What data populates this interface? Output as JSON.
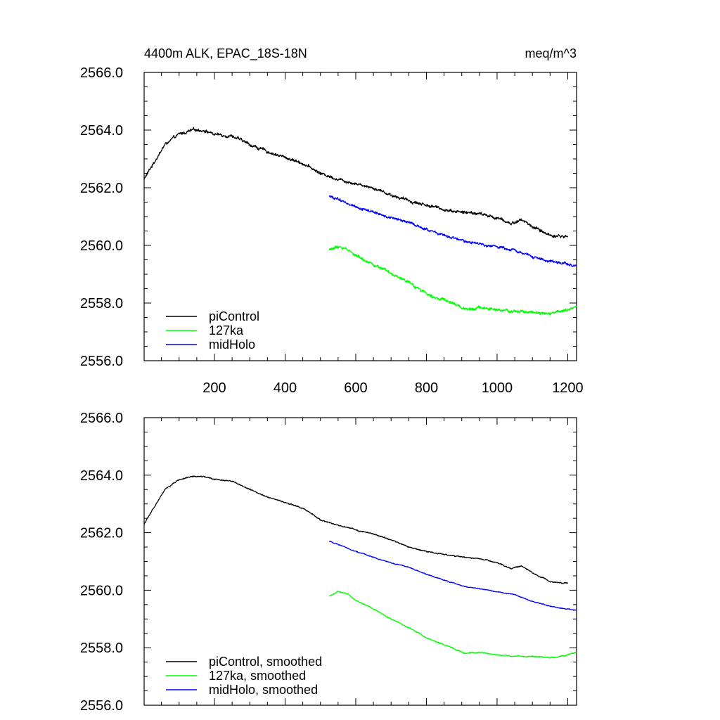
{
  "chart_data": [
    {
      "type": "line",
      "title": "4400m ALK, EPAC_18S-18N",
      "units": "meq/m^3",
      "xlabel": "",
      "ylabel": "",
      "xlim": [
        1,
        1225
      ],
      "ylim": [
        2556.0,
        2566.0
      ],
      "xticks": [
        200,
        400,
        600,
        800,
        1000,
        1200
      ],
      "xtick_labels": [
        "200",
        "400",
        "600",
        "800",
        "1000",
        "1200"
      ],
      "yticks": [
        2556.0,
        2558.0,
        2560.0,
        2562.0,
        2564.0,
        2566.0
      ],
      "ytick_labels": [
        "2556.0",
        "2558.0",
        "2560.0",
        "2562.0",
        "2564.0",
        "2566.0"
      ],
      "legend_position": "bottom-left",
      "series": [
        {
          "name": "piControl",
          "color": "#000000",
          "noise": 0.07,
          "x": [
            1,
            30,
            60,
            100,
            140,
            170,
            200,
            250,
            300,
            350,
            400,
            450,
            500,
            550,
            600,
            650,
            700,
            750,
            800,
            850,
            900,
            950,
            1000,
            1040,
            1070,
            1100,
            1150,
            1200
          ],
          "y": [
            2562.3,
            2562.9,
            2563.5,
            2563.85,
            2564.0,
            2564.0,
            2563.85,
            2563.8,
            2563.5,
            2563.25,
            2563.05,
            2562.85,
            2562.5,
            2562.3,
            2562.15,
            2562.0,
            2561.75,
            2561.55,
            2561.4,
            2561.25,
            2561.15,
            2561.1,
            2560.95,
            2560.75,
            2560.9,
            2560.65,
            2560.35,
            2560.3
          ]
        },
        {
          "name": "127ka",
          "color": "#00ff00",
          "noise": 0.07,
          "x": [
            525,
            550,
            580,
            600,
            650,
            700,
            750,
            800,
            850,
            880,
            910,
            950,
            1000,
            1050,
            1100,
            1150,
            1200,
            1225
          ],
          "y": [
            2559.85,
            2559.95,
            2559.85,
            2559.65,
            2559.35,
            2559.0,
            2558.7,
            2558.35,
            2558.1,
            2557.95,
            2557.8,
            2557.85,
            2557.75,
            2557.7,
            2557.7,
            2557.65,
            2557.75,
            2557.85
          ]
        },
        {
          "name": "midHolo",
          "color": "#0000ff",
          "noise": 0.06,
          "x": [
            525,
            550,
            600,
            650,
            700,
            750,
            800,
            850,
            900,
            950,
            1000,
            1050,
            1100,
            1150,
            1200,
            1225
          ],
          "y": [
            2561.7,
            2561.6,
            2561.35,
            2561.15,
            2560.95,
            2560.8,
            2560.55,
            2560.35,
            2560.15,
            2560.05,
            2559.95,
            2559.85,
            2559.6,
            2559.45,
            2559.35,
            2559.3
          ]
        }
      ]
    },
    {
      "type": "line",
      "title": "",
      "xlabel": "",
      "ylabel": "",
      "xlim": [
        1,
        1225
      ],
      "ylim": [
        2556.0,
        2566.0
      ],
      "xticks": [
        200,
        400,
        600,
        800,
        1000,
        1200
      ],
      "yticks": [
        2556.0,
        2558.0,
        2560.0,
        2562.0,
        2564.0,
        2566.0
      ],
      "ytick_labels": [
        "2556.0",
        "2558.0",
        "2560.0",
        "2562.0",
        "2564.0",
        "2566.0"
      ],
      "legend_position": "bottom-left",
      "series": [
        {
          "name": "piControl, smoothed",
          "color": "#000000",
          "noise": 0.025,
          "x": [
            1,
            30,
            60,
            100,
            140,
            170,
            200,
            250,
            300,
            350,
            400,
            450,
            500,
            550,
            600,
            650,
            700,
            750,
            800,
            850,
            900,
            950,
            1000,
            1040,
            1070,
            1100,
            1150,
            1200
          ],
          "y": [
            2562.3,
            2562.9,
            2563.5,
            2563.85,
            2563.95,
            2563.95,
            2563.85,
            2563.8,
            2563.5,
            2563.25,
            2563.05,
            2562.85,
            2562.45,
            2562.25,
            2562.1,
            2561.95,
            2561.75,
            2561.5,
            2561.35,
            2561.25,
            2561.15,
            2561.1,
            2560.95,
            2560.75,
            2560.85,
            2560.6,
            2560.3,
            2560.25
          ]
        },
        {
          "name": "127ka, smoothed",
          "color": "#00ff00",
          "noise": 0.025,
          "x": [
            525,
            550,
            580,
            600,
            650,
            700,
            750,
            800,
            850,
            880,
            910,
            950,
            1000,
            1050,
            1100,
            1150,
            1200,
            1225
          ],
          "y": [
            2559.8,
            2559.95,
            2559.85,
            2559.65,
            2559.35,
            2559.0,
            2558.7,
            2558.35,
            2558.1,
            2557.95,
            2557.8,
            2557.85,
            2557.75,
            2557.7,
            2557.7,
            2557.65,
            2557.75,
            2557.85
          ]
        },
        {
          "name": "midHolo, smoothed",
          "color": "#0000ff",
          "noise": 0.02,
          "x": [
            525,
            550,
            600,
            650,
            700,
            750,
            800,
            850,
            900,
            950,
            1000,
            1050,
            1100,
            1150,
            1200,
            1225
          ],
          "y": [
            2561.7,
            2561.6,
            2561.35,
            2561.15,
            2560.95,
            2560.8,
            2560.55,
            2560.35,
            2560.15,
            2560.05,
            2559.95,
            2559.85,
            2559.6,
            2559.45,
            2559.35,
            2559.3
          ]
        }
      ]
    }
  ]
}
